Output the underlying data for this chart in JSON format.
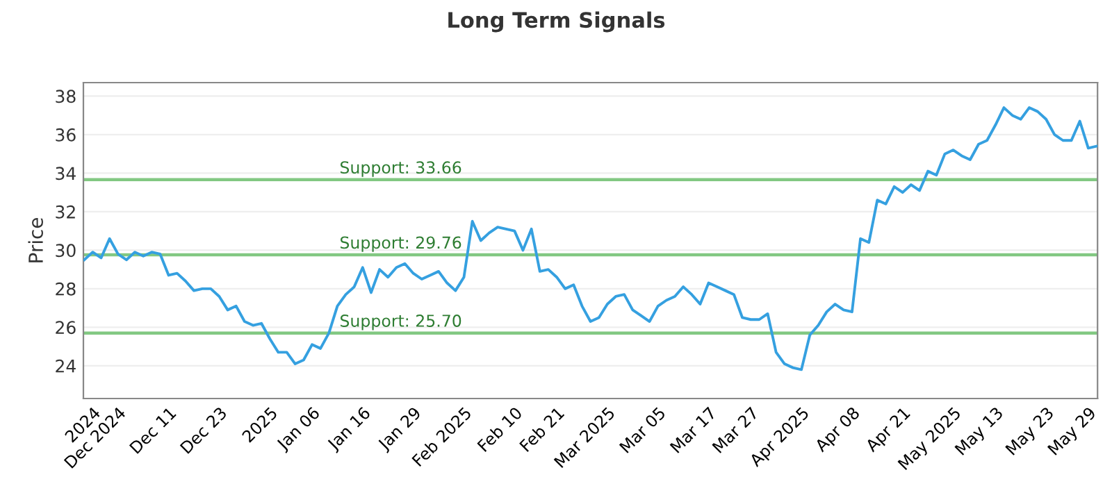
{
  "chart_data": {
    "type": "line",
    "title": "Long Term Signals",
    "ylabel": "Price",
    "categories": [
      null,
      "2024",
      null,
      null,
      "Dec 2024",
      null,
      null,
      null,
      null,
      null,
      "Dec 11",
      null,
      null,
      null,
      null,
      null,
      "Dec 23",
      null,
      null,
      null,
      null,
      null,
      "2025",
      null,
      null,
      null,
      null,
      "Jan 06",
      null,
      null,
      null,
      null,
      null,
      "Jan 16",
      null,
      null,
      null,
      null,
      null,
      "Jan 29",
      null,
      null,
      null,
      null,
      null,
      "Feb 2025",
      null,
      null,
      null,
      null,
      null,
      "Feb 10",
      null,
      null,
      null,
      null,
      "Feb 21",
      null,
      null,
      null,
      null,
      null,
      "Mar 2025",
      null,
      null,
      null,
      null,
      null,
      "Mar 05",
      null,
      null,
      null,
      null,
      null,
      "Mar 17",
      null,
      null,
      null,
      null,
      "Mar 27",
      null,
      null,
      null,
      null,
      null,
      "Apr 2025",
      null,
      null,
      null,
      null,
      null,
      "Apr 08",
      null,
      null,
      null,
      null,
      null,
      "Apr 21",
      null,
      null,
      null,
      null,
      null,
      "May 2025",
      null,
      null,
      null,
      null,
      "May 13",
      null,
      null,
      null,
      null,
      null,
      "May 23",
      null,
      null,
      null,
      null,
      "May 29",
      null
    ],
    "series": [
      {
        "color": "#35a0e0",
        "values": [
          29.5,
          29.9,
          29.6,
          30.6,
          29.8,
          29.5,
          29.9,
          29.7,
          29.9,
          29.8,
          28.7,
          28.8,
          28.4,
          27.9,
          28.0,
          28.0,
          27.6,
          26.9,
          27.1,
          26.3,
          26.1,
          26.2,
          25.4,
          24.7,
          24.7,
          24.1,
          24.3,
          25.1,
          24.9,
          25.7,
          27.1,
          27.7,
          28.1,
          29.1,
          27.8,
          29.0,
          28.6,
          29.1,
          29.3,
          28.8,
          28.5,
          28.7,
          28.9,
          28.3,
          27.9,
          28.6,
          31.5,
          30.5,
          30.9,
          31.2,
          31.1,
          31.0,
          30.0,
          31.1,
          28.9,
          29.0,
          28.6,
          28.0,
          28.2,
          27.1,
          26.3,
          26.5,
          27.2,
          27.6,
          27.7,
          26.9,
          26.6,
          26.3,
          27.1,
          27.4,
          27.6,
          28.1,
          27.7,
          27.2,
          28.3,
          28.1,
          27.9,
          27.7,
          26.5,
          26.4,
          26.4,
          26.7,
          24.7,
          24.1,
          23.9,
          23.8,
          25.6,
          26.1,
          26.8,
          27.2,
          26.9,
          26.8,
          30.6,
          30.4,
          32.6,
          32.4,
          33.3,
          33.0,
          33.4,
          33.1,
          34.1,
          33.9,
          35.0,
          35.2,
          34.9,
          34.7,
          35.5,
          35.7,
          36.5,
          37.4,
          37.0,
          36.8,
          37.4,
          37.2,
          36.8,
          36.0,
          35.7,
          35.7,
          36.7,
          35.3,
          35.4
        ]
      }
    ],
    "ylim": [
      22.3,
      38.7
    ],
    "yticks": [
      24,
      26,
      28,
      30,
      32,
      34,
      36,
      38
    ],
    "grid": "y",
    "ref_lines": [
      {
        "axis": "y",
        "value": 33.66,
        "label": "Support: 33.66",
        "color": "#82c882"
      },
      {
        "axis": "y",
        "value": 29.76,
        "label": "Support: 29.76",
        "color": "#82c882"
      },
      {
        "axis": "y",
        "value": 25.7,
        "label": "Support: 25.70",
        "color": "#82c882"
      }
    ]
  }
}
